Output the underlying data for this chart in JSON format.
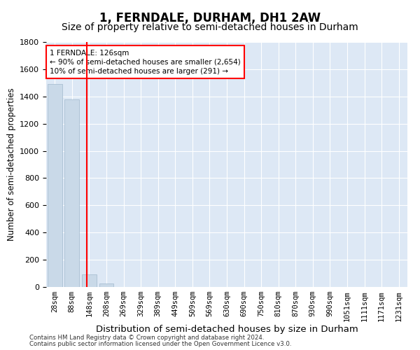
{
  "title": "1, FERNDALE, DURHAM, DH1 2AW",
  "subtitle": "Size of property relative to semi-detached houses in Durham",
  "xlabel": "Distribution of semi-detached houses by size in Durham",
  "ylabel": "Number of semi-detached properties",
  "footnote1": "Contains HM Land Registry data © Crown copyright and database right 2024.",
  "footnote2": "Contains public sector information licensed under the Open Government Licence v3.0.",
  "bar_labels": [
    "28sqm",
    "88sqm",
    "148sqm",
    "208sqm",
    "269sqm",
    "329sqm",
    "389sqm",
    "449sqm",
    "509sqm",
    "569sqm",
    "630sqm",
    "690sqm",
    "750sqm",
    "810sqm",
    "870sqm",
    "930sqm",
    "990sqm",
    "1051sqm",
    "1111sqm",
    "1171sqm",
    "1231sqm"
  ],
  "bar_values": [
    1490,
    1380,
    95,
    25,
    0,
    0,
    0,
    0,
    0,
    0,
    0,
    0,
    0,
    0,
    0,
    0,
    0,
    0,
    0,
    0,
    0
  ],
  "bar_color": "#c9d9e8",
  "bar_edge_color": "#a0b8cc",
  "property_line_x": 1.85,
  "property_line_color": "red",
  "annotation_text_line1": "1 FERNDALE: 126sqm",
  "annotation_text_line2": "← 90% of semi-detached houses are smaller (2,654)",
  "annotation_text_line3": "10% of semi-detached houses are larger (291) →",
  "annotation_box_color": "white",
  "annotation_box_edge": "red",
  "ylim": [
    0,
    1800
  ],
  "title_fontsize": 12,
  "subtitle_fontsize": 10,
  "tick_fontsize": 7.5,
  "ylabel_fontsize": 8.5,
  "xlabel_fontsize": 9.5,
  "plot_background": "#dde8f5"
}
